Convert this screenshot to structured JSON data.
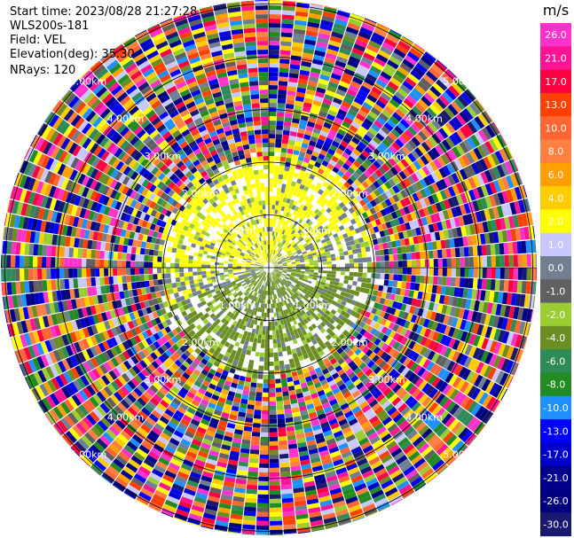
{
  "header": {
    "start_time": "Start time: 2023/08/28 21:27:28",
    "instrument": "WLS200s-181",
    "field": "Field: VEL",
    "elevation": "Elevation(deg): 35.30",
    "nrays": "NRays: 120"
  },
  "chart_data": {
    "type": "heatmap",
    "projection": "polar (PPI)",
    "range_rings_km": [
      1.0,
      2.0,
      3.0,
      4.0,
      5.0
    ],
    "ring_labels": [
      "1.00km",
      "2.00km",
      "3.00km",
      "4.00km",
      "5.00km"
    ],
    "nrays": 120,
    "elevation_deg": 35.3,
    "colorbar": {
      "unit": "m/s",
      "ticks": [
        "26.0",
        "21.0",
        "17.0",
        "13.0",
        "10.0",
        "8.0",
        "6.0",
        "4.0",
        "2.0",
        "1.0",
        "0.0",
        "-1.0",
        "-2.0",
        "-4.0",
        "-6.0",
        "-8.0",
        "-10.0",
        "-13.0",
        "-17.0",
        "-21.0",
        "-26.0",
        "-30.0"
      ],
      "colors": [
        "#ff33cc",
        "#ff1493",
        "#ff0040",
        "#ff4000",
        "#ff6633",
        "#ff8040",
        "#ff9f00",
        "#ffcc00",
        "#ffff00",
        "#c8c8ff",
        "#708090",
        "#606060",
        "#9acd32",
        "#6b8e23",
        "#2e8b57",
        "#228b22",
        "#1e90ff",
        "#0000ff",
        "#0000cd",
        "#00008b",
        "#000080",
        "#191970"
      ]
    },
    "notes": "Radial velocity PPI: near-field yellow (positive) north/west, green (negative) south/east; beyond ~2 km noisy multicolor returns."
  }
}
